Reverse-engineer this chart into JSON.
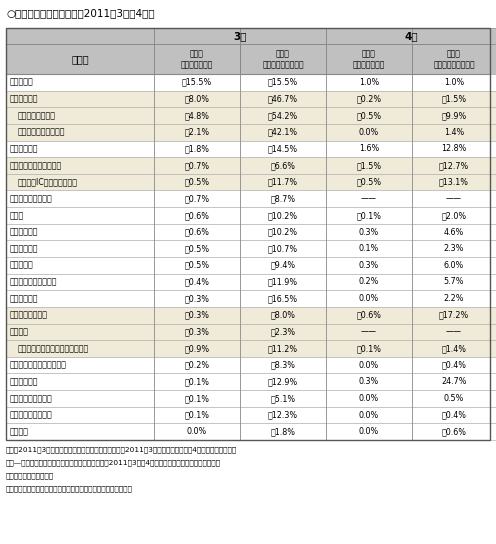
{
  "title": "○全国の業種別生産動向（2011年3月・4月）",
  "col0_header": "業　種",
  "month3": "3月",
  "month4": "4月",
  "contrib": "寄与度\n（％ポイント）",
  "mom": "前月比\n（季節調整済、％）",
  "rows": [
    [
      "鉱工業全体",
      "－15.5%",
      "－15.5%",
      "1.0%",
      "1.0%",
      false
    ],
    [
      "輸送機械工業",
      "－8.0%",
      "－46.7%",
      "－0.2%",
      "－1.5%",
      true
    ],
    [
      "（うち、乗用車）",
      "－4.8%",
      "－54.2%",
      "－0.5%",
      "－9.9%",
      true
    ],
    [
      "（うち、自動車部品）",
      "－2.1%",
      "－42.1%",
      "0.0%",
      "1.4%",
      true
    ],
    [
      "一般機械工業",
      "－1.8%",
      "－14.5%",
      "1.6%",
      "12.8%",
      false
    ],
    [
      "電子部品・デバイス工業",
      "－0.7%",
      "－6.6%",
      "－1.5%",
      "－12.7%",
      true
    ],
    [
      "（うち、IC（集積回路））",
      "－0.5%",
      "－11.7%",
      "－0.5%",
      "－13.1%",
      true
    ],
    [
      "食料品・たばこ工業",
      "－0.7%",
      "－8.7%",
      "——",
      "——",
      false
    ],
    [
      "鉄鄡業",
      "－0.6%",
      "－10.2%",
      "－0.1%",
      "－2.0%",
      false
    ],
    [
      "電気機械工業",
      "－0.6%",
      "－10.2%",
      "0.3%",
      "4.6%",
      false
    ],
    [
      "金属製品工業",
      "－0.5%",
      "－10.7%",
      "0.1%",
      "2.3%",
      false
    ],
    [
      "その他工業",
      "－0.5%",
      "－9.4%",
      "0.3%",
      "6.0%",
      false
    ],
    [
      "プラスチック製品工業",
      "－0.4%",
      "－11.9%",
      "0.2%",
      "5.7%",
      false
    ],
    [
      "非鉄金属工業",
      "－0.3%",
      "－16.5%",
      "0.0%",
      "2.2%",
      false
    ],
    [
      "情報通信機械工業",
      "－0.3%",
      "－8.0%",
      "－0.6%",
      "－17.2%",
      true
    ],
    [
      "化学工業",
      "－0.3%",
      "－2.3%",
      "——",
      "——",
      true
    ],
    [
      "（うち、化学工業（除医薬品））",
      "－0.9%",
      "－11.2%",
      "－0.1%",
      "－1.4%",
      true
    ],
    [
      "パルプ・紙・紙加工品工業",
      "－0.2%",
      "－8.3%",
      "0.0%",
      "－0.4%",
      false
    ],
    [
      "精密機械工業",
      "－0.1%",
      "－12.9%",
      "0.3%",
      "24.7%",
      false
    ],
    [
      "窯業・土石製品工業",
      "－0.1%",
      "－5.1%",
      "0.0%",
      "0.5%",
      false
    ],
    [
      "石油・石炭製品工業",
      "－0.1%",
      "－12.3%",
      "0.0%",
      "－0.4%",
      false
    ],
    [
      "繊維工業",
      "0.0%",
      "－1.8%",
      "0.0%",
      "－0.6%",
      false
    ]
  ],
  "footnote1": "備考：2011年3月のマイナス寄与が大きい順に並べた。2011年3月の数値は推報値、4月の数値は速報値。",
  "footnote2": "　「—」は速報値段階では未公表。網掛け部分は、2011年3月・4月とも、前月比（季節調整済）がマ",
  "footnote3": "　イナスであった業種。",
  "footnote4": "資料：経済産業省「鉱工業指数（鉱工業生産指数）」から作成。",
  "bg_header": "#c0c0c0",
  "bg_shaded": "#f0ead8",
  "bg_white": "#ffffff",
  "bg_title_area": "#ffffff"
}
